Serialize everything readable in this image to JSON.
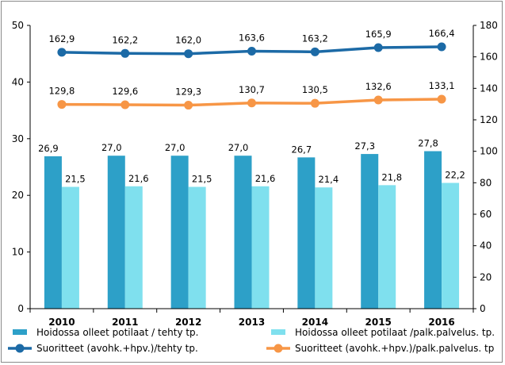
{
  "chart_data": {
    "type": "bar",
    "categories": [
      "2010",
      "2011",
      "2012",
      "2013",
      "2014",
      "2015",
      "2016"
    ],
    "left_axis": {
      "range": [
        0,
        50
      ],
      "ticks": [
        "0",
        "10",
        "20",
        "30",
        "40",
        "50"
      ]
    },
    "right_axis": {
      "range": [
        0,
        180
      ],
      "ticks": [
        "0",
        "20",
        "40",
        "60",
        "80",
        "100",
        "120",
        "140",
        "160",
        "180"
      ]
    },
    "grid": false,
    "legend_position": "bottom",
    "series": [
      {
        "name": "Hoidossa olleet potilaat / tehty tp.",
        "type": "bar",
        "axis": "left",
        "color": "#2da0c8",
        "values": [
          26.9,
          27.0,
          27.0,
          27.0,
          26.7,
          27.3,
          27.8
        ],
        "labels": [
          "26,9",
          "27,0",
          "27,0",
          "27,0",
          "26,7",
          "27,3",
          "27,8"
        ]
      },
      {
        "name": "Hoidossa olleet potilaat /palk.palvelus. tp.",
        "type": "bar",
        "axis": "left",
        "color": "#7fe0ee",
        "values": [
          21.5,
          21.6,
          21.5,
          21.6,
          21.4,
          21.8,
          22.2
        ],
        "labels": [
          "21,5",
          "21,6",
          "21,5",
          "21,6",
          "21,4",
          "21,8",
          "22,2"
        ]
      },
      {
        "name": "Suoritteet (avohk.+hpv.)/tehty tp.",
        "type": "line",
        "axis": "right",
        "color": "#1c6aa6",
        "values": [
          162.9,
          162.2,
          162.0,
          163.6,
          163.2,
          165.9,
          166.4
        ],
        "labels": [
          "162,9",
          "162,2",
          "162,0",
          "163,6",
          "163,2",
          "165,9",
          "166,4"
        ]
      },
      {
        "name": "Suoritteet (avohk.+hpv.)/palk.palvelus. tp",
        "type": "line",
        "axis": "right",
        "color": "#f79646",
        "values": [
          129.8,
          129.6,
          129.3,
          130.7,
          130.5,
          132.6,
          133.1
        ],
        "labels": [
          "129,8",
          "129,6",
          "129,3",
          "130,7",
          "130,5",
          "132,6",
          "133,1"
        ]
      }
    ]
  }
}
